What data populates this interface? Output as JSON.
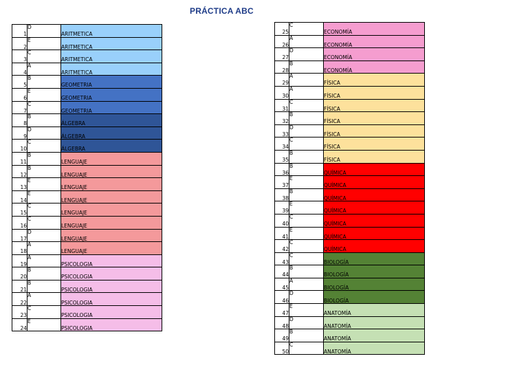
{
  "title": "PRÁCTICA ABC",
  "colors": {
    "ARITMETICA": "#99d0fb",
    "GEOMETRIA": "#4472c4",
    "ÁLGEBRA": "#2f5597",
    "LENGUAJE": "#f4999b",
    "PSICOLOGIA": "#f5bde8",
    "ECONOMÍA": "#f59dcf",
    "FÍSICA": "#fde19c",
    "QUÍMICA": "#ff0000",
    "BIOLOGÍA": "#548235",
    "ANATOMÍA": "#c5e0b4"
  },
  "left_rows": [
    {
      "num": "1",
      "answer": "D",
      "subject": "ARITMETICA"
    },
    {
      "num": "2",
      "answer": "E",
      "subject": "ARITMETICA"
    },
    {
      "num": "3",
      "answer": "C",
      "subject": "ARITMETICA"
    },
    {
      "num": "4",
      "answer": "A",
      "subject": "ARITMETICA"
    },
    {
      "num": "5",
      "answer": "B",
      "subject": "GEOMETRIA"
    },
    {
      "num": "6",
      "answer": "E",
      "subject": "GEOMETRIA"
    },
    {
      "num": "7",
      "answer": "C",
      "subject": "GEOMETRIA"
    },
    {
      "num": "8",
      "answer": "B",
      "subject": "ÁLGEBRA"
    },
    {
      "num": "9",
      "answer": "D",
      "subject": "ÁLGEBRA"
    },
    {
      "num": "10",
      "answer": "C",
      "subject": "ÁLGEBRA"
    },
    {
      "num": "11",
      "answer": "B",
      "subject": "LENGUAJE"
    },
    {
      "num": "12",
      "answer": "B",
      "subject": "LENGUAJE"
    },
    {
      "num": "13",
      "answer": "E",
      "subject": "LENGUAJE"
    },
    {
      "num": "14",
      "answer": "E",
      "subject": "LENGUAJE"
    },
    {
      "num": "15",
      "answer": "C",
      "subject": "LENGUAJE"
    },
    {
      "num": "16",
      "answer": "C",
      "subject": "LENGUAJE"
    },
    {
      "num": "17",
      "answer": "D",
      "subject": "LENGUAJE"
    },
    {
      "num": "18",
      "answer": "A",
      "subject": "LENGUAJE"
    },
    {
      "num": "19",
      "answer": "A",
      "subject": "PSICOLOGIA"
    },
    {
      "num": "20",
      "answer": "B",
      "subject": "PSICOLOGIA"
    },
    {
      "num": "21",
      "answer": "B",
      "subject": "PSICOLOGIA"
    },
    {
      "num": "22",
      "answer": "A",
      "subject": "PSICOLOGIA"
    },
    {
      "num": "23",
      "answer": "C",
      "subject": "PSICOLOGIA"
    },
    {
      "num": "24",
      "answer": "E",
      "subject": "PSICOLOGIA"
    }
  ],
  "right_rows": [
    {
      "num": "25",
      "answer": "C",
      "subject": "ECONOMÍA"
    },
    {
      "num": "26",
      "answer": "A",
      "subject": "ECONOMÍA"
    },
    {
      "num": "27",
      "answer": "D",
      "subject": "ECONOMÍA"
    },
    {
      "num": "28",
      "answer": "B",
      "subject": "ECONOMÍA"
    },
    {
      "num": "29",
      "answer": "A",
      "subject": "FÍSICA"
    },
    {
      "num": "30",
      "answer": "A",
      "subject": "FÍSICA"
    },
    {
      "num": "31",
      "answer": "C",
      "subject": "FÍSICA"
    },
    {
      "num": "32",
      "answer": "B",
      "subject": "FÍSICA"
    },
    {
      "num": "33",
      "answer": "D",
      "subject": "FÍSICA"
    },
    {
      "num": "34",
      "answer": "C",
      "subject": "FÍSICA"
    },
    {
      "num": "35",
      "answer": "B",
      "subject": "FÍSICA"
    },
    {
      "num": "36",
      "answer": "B",
      "subject": "QUÍMICA"
    },
    {
      "num": "37",
      "answer": "E",
      "subject": "QUÍMICA"
    },
    {
      "num": "38",
      "answer": "B",
      "subject": "QUÍMICA"
    },
    {
      "num": "39",
      "answer": "E",
      "subject": "QUÍMICA"
    },
    {
      "num": "40",
      "answer": "C",
      "subject": "QUÍMICA"
    },
    {
      "num": "41",
      "answer": "E",
      "subject": "QUÍMICA"
    },
    {
      "num": "42",
      "answer": "C",
      "subject": "QUÍMICA"
    },
    {
      "num": "43",
      "answer": "C",
      "subject": "BIOLOGÍA"
    },
    {
      "num": "44",
      "answer": "B",
      "subject": "BIOLOGÍA"
    },
    {
      "num": "45",
      "answer": "A",
      "subject": "BIOLOGÍA"
    },
    {
      "num": "46",
      "answer": "D",
      "subject": "BIOLOGÍA"
    },
    {
      "num": "47",
      "answer": "E",
      "subject": "ANATOMÍA"
    },
    {
      "num": "48",
      "answer": "D",
      "subject": "ANATOMÍA"
    },
    {
      "num": "49",
      "answer": "B",
      "subject": "ANATOMÍA"
    },
    {
      "num": "50",
      "answer": "C",
      "subject": "ANATOMÍA"
    }
  ]
}
